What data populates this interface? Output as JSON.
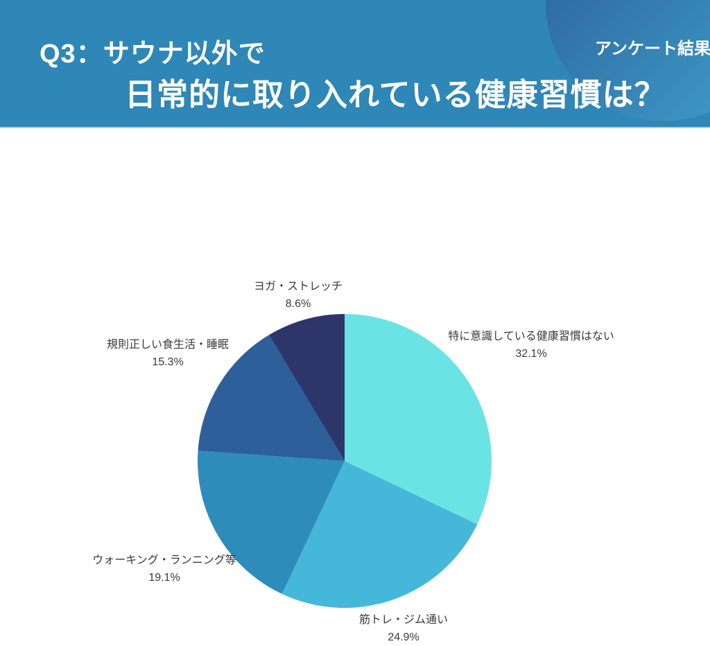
{
  "header": {
    "title_line1": "Q3：サウナ以外で",
    "title_line2": "日常的に取り入れている健康習慣は？",
    "badge": "アンケート結果",
    "colors": {
      "band": "#2E87B6",
      "band_edge": "#AECBDD",
      "circle_gradient_from": "#2B5C97",
      "circle_gradient_to": "#3FA0CB",
      "title_text": "#FFFFFF"
    }
  },
  "chart_data": {
    "type": "pie",
    "title": "",
    "start_angle_deg": 0,
    "direction": "clockwise",
    "label_text_color": "#3A3A3A",
    "slices": [
      {
        "label": "特に意識している健康習慣はない",
        "value": 32.1,
        "pct_label": "32.1%",
        "color": "#6AE3E5"
      },
      {
        "label": "筋トレ・ジム通い",
        "value": 24.9,
        "pct_label": "24.9%",
        "color": "#45B7D9"
      },
      {
        "label": "ウォーキング・ランニング等",
        "value": 19.1,
        "pct_label": "19.1%",
        "color": "#2E8CBB"
      },
      {
        "label": "規則正しい食生活・睡眠",
        "value": 15.3,
        "pct_label": "15.3%",
        "color": "#2D5F9B"
      },
      {
        "label": "ヨガ・ストレッチ",
        "value": 8.6,
        "pct_label": "8.6%",
        "color": "#2E356B"
      }
    ]
  }
}
